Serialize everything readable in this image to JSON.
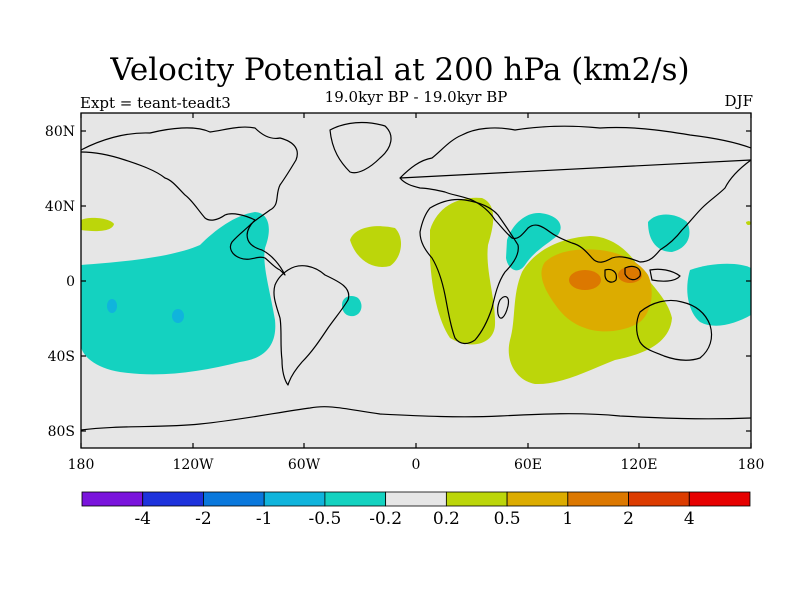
{
  "title": "Velocity Potential at 200 hPa (km2/s)",
  "subtitle": "19.0kyr BP - 19.0kyr BP",
  "experiment": "Expt = teant-teadt3",
  "season": "DJF",
  "lat_ticks": [
    "80N",
    "40N",
    "0",
    "40S",
    "80S"
  ],
  "lon_ticks": [
    "180",
    "120W",
    "60W",
    "0",
    "60E",
    "120E",
    "180"
  ],
  "colorbar": {
    "colors": [
      "#7a14dc",
      "#1e32dc",
      "#0a78dc",
      "#10b4dc",
      "#14d2c0",
      "#e6e6e6",
      "#bcd60a",
      "#dcac00",
      "#dc7800",
      "#dc3c00",
      "#e60000"
    ],
    "labels": [
      "-4",
      "-2",
      "-1",
      "-0.5",
      "-0.2",
      "0.2",
      "0.5",
      "1",
      "2",
      "4"
    ]
  },
  "colors": {
    "ocean_background": "#e6e6e6",
    "coastline": "#000000"
  }
}
